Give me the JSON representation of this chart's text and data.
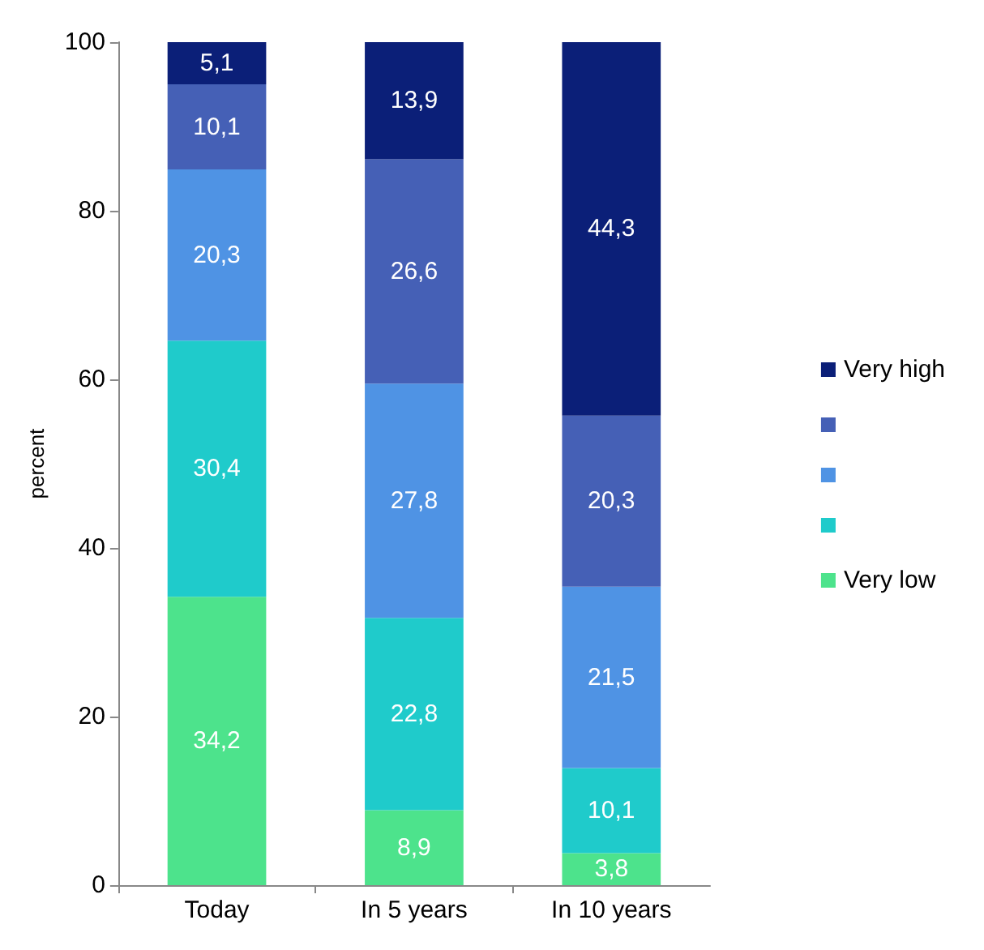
{
  "chart_data": {
    "type": "bar",
    "stacked": true,
    "ylabel": "percent",
    "categories": [
      "Today",
      "In 5 years",
      "In 10 years"
    ],
    "ylim": [
      0,
      100
    ],
    "yticks": [
      0,
      20,
      40,
      60,
      80,
      100
    ],
    "grid": false,
    "legend": "right",
    "series": [
      {
        "name": "Very low",
        "color": "#4de38c",
        "values": [
          34.2,
          8.9,
          3.8
        ],
        "value_labels": [
          "34,2",
          "8,9",
          "3,8"
        ]
      },
      {
        "color": "#1fcbcb",
        "values": [
          30.4,
          22.8,
          10.1
        ],
        "value_labels": [
          "30,4",
          "22,8",
          "10,1"
        ]
      },
      {
        "color": "#4f93e4",
        "values": [
          20.3,
          27.8,
          21.5
        ],
        "value_labels": [
          "20,3",
          "27,8",
          "21,5"
        ]
      },
      {
        "color": "#4560b6",
        "values": [
          10.1,
          26.6,
          20.3
        ],
        "value_labels": [
          "10,1",
          "26,6",
          "20,3"
        ]
      },
      {
        "name": "Very high",
        "color": "#0b1f78",
        "values": [
          5.1,
          13.9,
          44.3
        ],
        "value_labels": [
          "5,1",
          "13,9",
          "44,3"
        ]
      }
    ]
  }
}
